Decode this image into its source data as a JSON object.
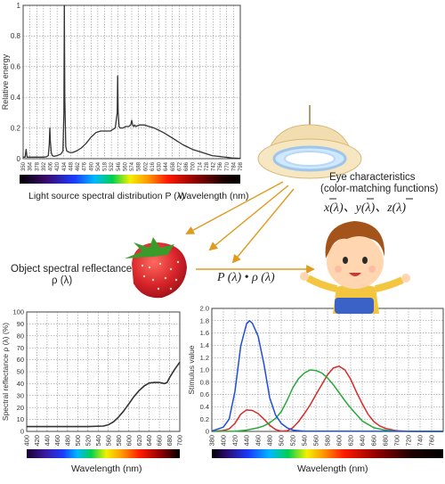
{
  "colors": {
    "curve": "#333333",
    "grid": "#7a7a7a",
    "arrow": "#e09a1c",
    "x_bar": "#d62b2b",
    "y_bar": "#2aa83a",
    "z_bar": "#1f4fd8",
    "strawberry": "#d8242b",
    "lamp_shade": "#f2ddb0"
  },
  "icons": {
    "lamp": "ceiling-lamp-icon",
    "strawberry": "strawberry-icon",
    "boy": "cartoon-boy-icon"
  },
  "labels": {
    "light_source_caption": "Light source spectral distribution P (λ)",
    "light_source_wavelength": "Wavelength (nm)",
    "eye_line1": "Eye characteristics",
    "eye_line2": "(color-matching functions)",
    "cmf_formula": "x(λ)、y(λ)、z(λ)",
    "object_line1": "Object spectral reflectance",
    "object_line2": "ρ (λ)",
    "product_formula": "P (λ) • ρ (λ)",
    "reflectance_wavelength": "Wavelength (nm)",
    "stimulus_wavelength": "Wavelength (nm)"
  },
  "chart_data": [
    {
      "type": "line",
      "ylabel": "Relative energy",
      "xlim": [
        350,
        798
      ],
      "ylim": [
        0,
        1
      ],
      "yticks": [
        "0",
        "0.2",
        "0.4",
        "0.6",
        "0.8",
        "1"
      ],
      "ytick_values": [
        0,
        0.2,
        0.4,
        0.6,
        0.8,
        1
      ],
      "xticks": [
        "350",
        "364",
        "378",
        "392",
        "406",
        "420",
        "434",
        "448",
        "462",
        "476",
        "490",
        "504",
        "518",
        "532",
        "546",
        "560",
        "574",
        "588",
        "602",
        "616",
        "630",
        "644",
        "658",
        "672",
        "686",
        "700",
        "714",
        "728",
        "742",
        "756",
        "770",
        "784",
        "798"
      ],
      "grid": true,
      "series": [
        {
          "x": [
            350,
            354,
            356,
            358,
            360,
            362,
            364,
            370,
            380,
            392,
            398,
            402,
            404,
            405,
            406,
            408,
            410,
            414,
            420,
            428,
            432,
            434,
            435,
            436,
            438,
            440,
            446,
            452,
            460,
            470,
            480,
            490,
            500,
            510,
            520,
            530,
            540,
            544,
            545,
            546,
            548,
            550,
            556,
            562,
            568,
            572,
            574,
            576,
            578,
            580,
            582,
            590,
            600,
            620,
            640,
            660,
            680,
            700,
            720,
            740,
            760,
            780,
            798
          ],
          "y": [
            0.01,
            0.01,
            0.06,
            0.01,
            0.01,
            0.01,
            0.01,
            0.01,
            0.01,
            0.01,
            0.012,
            0.02,
            0.1,
            0.2,
            0.12,
            0.04,
            0.02,
            0.015,
            0.02,
            0.03,
            0.05,
            0.3,
            1.0,
            0.4,
            0.08,
            0.05,
            0.04,
            0.04,
            0.05,
            0.07,
            0.1,
            0.14,
            0.17,
            0.18,
            0.18,
            0.18,
            0.2,
            0.3,
            0.54,
            0.3,
            0.21,
            0.2,
            0.2,
            0.21,
            0.21,
            0.22,
            0.25,
            0.22,
            0.21,
            0.22,
            0.21,
            0.22,
            0.22,
            0.2,
            0.17,
            0.13,
            0.09,
            0.06,
            0.04,
            0.02,
            0.012,
            0.005,
            0.001
          ]
        }
      ]
    },
    {
      "type": "line",
      "ylabel": "Spectral reflectance  ρ (λ) (%)",
      "xlabel": "Wavelength (nm)",
      "xlim": [
        400,
        700
      ],
      "ylim": [
        0,
        100
      ],
      "yticks": [
        "0",
        "10",
        "20",
        "30",
        "40",
        "50",
        "60",
        "70",
        "80",
        "90",
        "100"
      ],
      "ytick_values": [
        0,
        10,
        20,
        30,
        40,
        50,
        60,
        70,
        80,
        90,
        100
      ],
      "xticks": [
        "400",
        "420",
        "440",
        "460",
        "480",
        "500",
        "520",
        "540",
        "560",
        "580",
        "600",
        "620",
        "640",
        "660",
        "680",
        "700"
      ],
      "grid": true,
      "series": [
        {
          "x": [
            400,
            440,
            480,
            520,
            550,
            560,
            570,
            580,
            590,
            600,
            610,
            620,
            630,
            640,
            650,
            660,
            665,
            670,
            675,
            680,
            690,
            700
          ],
          "y": [
            4,
            4,
            4,
            4,
            4.5,
            5.5,
            8,
            12,
            17,
            23,
            29,
            34,
            38,
            40.5,
            41,
            41,
            40.5,
            40,
            41,
            45,
            52,
            58
          ]
        }
      ]
    },
    {
      "type": "line",
      "ylabel": "Stimulus value",
      "xlabel": "Wavelength (nm)",
      "xlim": [
        380,
        780
      ],
      "ylim": [
        0,
        2.0
      ],
      "yticks": [
        "0",
        "0.2",
        "0.4",
        "0.6",
        "0.8",
        "1.0",
        "1.2",
        "1.4",
        "1.6",
        "1.8",
        "2.0"
      ],
      "ytick_values": [
        0,
        0.2,
        0.4,
        0.6,
        0.8,
        1.0,
        1.2,
        1.4,
        1.6,
        1.8,
        2.0
      ],
      "xticks": [
        "380",
        "400",
        "420",
        "440",
        "460",
        "480",
        "500",
        "520",
        "540",
        "560",
        "580",
        "600",
        "620",
        "640",
        "660",
        "680",
        "700",
        "720",
        "740",
        "760"
      ],
      "grid": true,
      "series": [
        {
          "color": "#d62b2b",
          "x": [
            380,
            400,
            410,
            420,
            430,
            440,
            450,
            460,
            470,
            480,
            490,
            500,
            510,
            520,
            530,
            540,
            550,
            560,
            570,
            580,
            590,
            600,
            610,
            620,
            630,
            640,
            650,
            660,
            670,
            680,
            700,
            720,
            740,
            760,
            780
          ],
          "y": [
            0.001,
            0.014,
            0.04,
            0.13,
            0.28,
            0.35,
            0.34,
            0.29,
            0.2,
            0.1,
            0.03,
            0.005,
            0.01,
            0.06,
            0.16,
            0.29,
            0.43,
            0.6,
            0.76,
            0.92,
            1.03,
            1.06,
            1.0,
            0.85,
            0.64,
            0.45,
            0.28,
            0.16,
            0.09,
            0.05,
            0.01,
            0.002,
            0.0,
            0.0,
            0.0
          ]
        },
        {
          "color": "#2aa83a",
          "x": [
            380,
            420,
            440,
            460,
            470,
            480,
            490,
            500,
            510,
            520,
            530,
            540,
            550,
            560,
            570,
            580,
            590,
            600,
            610,
            620,
            640,
            660,
            680,
            700,
            780
          ],
          "y": [
            0.0,
            0.004,
            0.02,
            0.06,
            0.09,
            0.14,
            0.21,
            0.32,
            0.5,
            0.71,
            0.86,
            0.95,
            1.0,
            0.99,
            0.95,
            0.87,
            0.76,
            0.63,
            0.5,
            0.38,
            0.17,
            0.06,
            0.02,
            0.004,
            0.0
          ]
        },
        {
          "color": "#1f4fd8",
          "x": [
            380,
            400,
            410,
            420,
            430,
            440,
            445,
            450,
            460,
            470,
            480,
            490,
            500,
            510,
            520,
            540,
            780
          ],
          "y": [
            0.006,
            0.07,
            0.2,
            0.65,
            1.39,
            1.75,
            1.8,
            1.76,
            1.55,
            1.1,
            0.55,
            0.27,
            0.13,
            0.06,
            0.02,
            0.004,
            0.0
          ]
        }
      ]
    }
  ]
}
